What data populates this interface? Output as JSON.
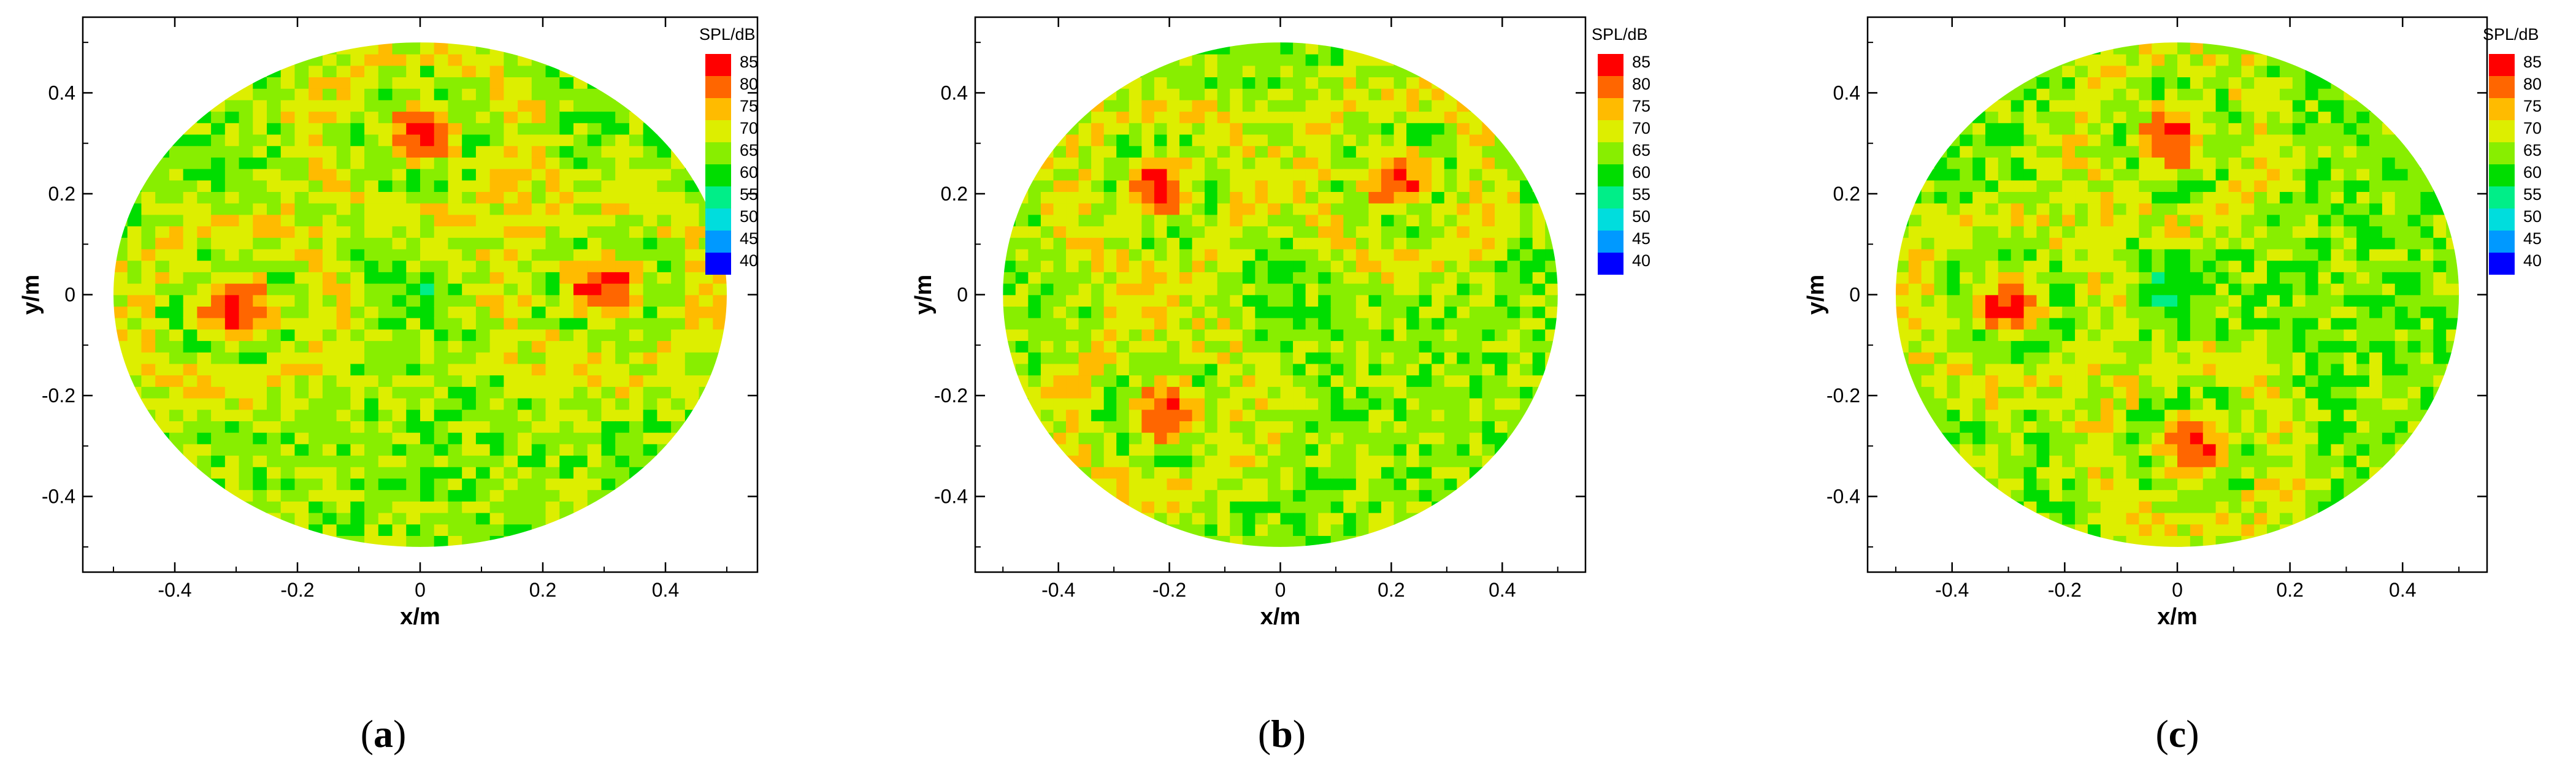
{
  "chart_data": [
    {
      "type": "heatmap",
      "panel": "a",
      "caption_prefix": "(",
      "caption_letter": "a",
      "caption_suffix": ")",
      "xlabel": "x/m",
      "ylabel": "y/m",
      "xlim": [
        -0.55,
        0.55
      ],
      "ylim": [
        -0.55,
        0.55
      ],
      "xticks": [
        "-0.4",
        "-0.2",
        "0",
        "0.2",
        "0.4"
      ],
      "xtick_values": [
        -0.4,
        -0.2,
        0,
        0.2,
        0.4
      ],
      "yticks": [
        "-0.4",
        "-0.2",
        "0",
        "0.2",
        "0.4"
      ],
      "ytick_values": [
        -0.4,
        -0.2,
        0,
        0.2,
        0.4
      ],
      "domain": "circle",
      "radius": 0.5,
      "background_level": 68,
      "sources": [
        [
          0,
          0.32
        ],
        [
          -0.3,
          -0.03
        ],
        [
          0.3,
          0.02
        ]
      ],
      "legend": {
        "title": "SPL/dB",
        "levels": [
          "85",
          "80",
          "75",
          "70",
          "65",
          "60",
          "55",
          "50",
          "45",
          "40"
        ],
        "level_values": [
          85,
          80,
          75,
          70,
          65,
          60,
          55,
          50,
          45,
          40
        ],
        "colors": [
          "#ff0000",
          "#ff6600",
          "#ffbb00",
          "#ddee00",
          "#88ee00",
          "#00dd00",
          "#00ee88",
          "#00dddd",
          "#0099ff",
          "#0000ff"
        ]
      }
    },
    {
      "type": "heatmap",
      "panel": "b",
      "caption_prefix": "(",
      "caption_letter": "b",
      "caption_suffix": ")",
      "xlabel": "x/m",
      "ylabel": "y/m",
      "xlim": [
        -0.55,
        0.55
      ],
      "ylim": [
        -0.55,
        0.55
      ],
      "xticks": [
        "-0.4",
        "-0.2",
        "0",
        "0.2",
        "0.4"
      ],
      "xtick_values": [
        -0.4,
        -0.2,
        0,
        0.2,
        0.4
      ],
      "yticks": [
        "-0.4",
        "-0.2",
        "0",
        "0.2",
        "0.4"
      ],
      "ytick_values": [
        -0.4,
        -0.2,
        0,
        0.2,
        0.4
      ],
      "domain": "circle",
      "radius": 0.5,
      "background_level": 68,
      "sources": [
        [
          -0.22,
          0.21
        ],
        [
          0.21,
          0.23
        ],
        [
          -0.21,
          -0.23
        ]
      ],
      "legend": {
        "title": "SPL/dB",
        "levels": [
          "85",
          "80",
          "75",
          "70",
          "65",
          "60",
          "55",
          "50",
          "45",
          "40"
        ],
        "level_values": [
          85,
          80,
          75,
          70,
          65,
          60,
          55,
          50,
          45,
          40
        ],
        "colors": [
          "#ff0000",
          "#ff6600",
          "#ffbb00",
          "#ddee00",
          "#88ee00",
          "#00dd00",
          "#00ee88",
          "#00dddd",
          "#0099ff",
          "#0000ff"
        ]
      }
    },
    {
      "type": "heatmap",
      "panel": "c",
      "caption_prefix": "(",
      "caption_letter": "c",
      "caption_suffix": ")",
      "xlabel": "x/m",
      "ylabel": "y/m",
      "xlim": [
        -0.55,
        0.55
      ],
      "ylim": [
        -0.55,
        0.55
      ],
      "xticks": [
        "-0.4",
        "-0.2",
        "0",
        "0.2",
        "0.4"
      ],
      "xtick_values": [
        -0.4,
        -0.2,
        0,
        0.2,
        0.4
      ],
      "yticks": [
        "-0.4",
        "-0.2",
        "0",
        "0.2",
        "0.4"
      ],
      "ytick_values": [
        -0.4,
        -0.2,
        0,
        0.2,
        0.4
      ],
      "domain": "circle",
      "radius": 0.5,
      "background_level": 67,
      "sources": [
        [
          -0.01,
          0.31
        ],
        [
          -0.3,
          -0.02
        ],
        [
          0.03,
          -0.3
        ]
      ],
      "legend": {
        "title": "SPL/dB",
        "levels": [
          "85",
          "80",
          "75",
          "70",
          "65",
          "60",
          "55",
          "50",
          "45",
          "40"
        ],
        "level_values": [
          85,
          80,
          75,
          70,
          65,
          60,
          55,
          50,
          45,
          40
        ],
        "colors": [
          "#ff0000",
          "#ff6600",
          "#ffbb00",
          "#ddee00",
          "#88ee00",
          "#00dd00",
          "#00ee88",
          "#00dddd",
          "#0099ff",
          "#0000ff"
        ]
      }
    }
  ]
}
